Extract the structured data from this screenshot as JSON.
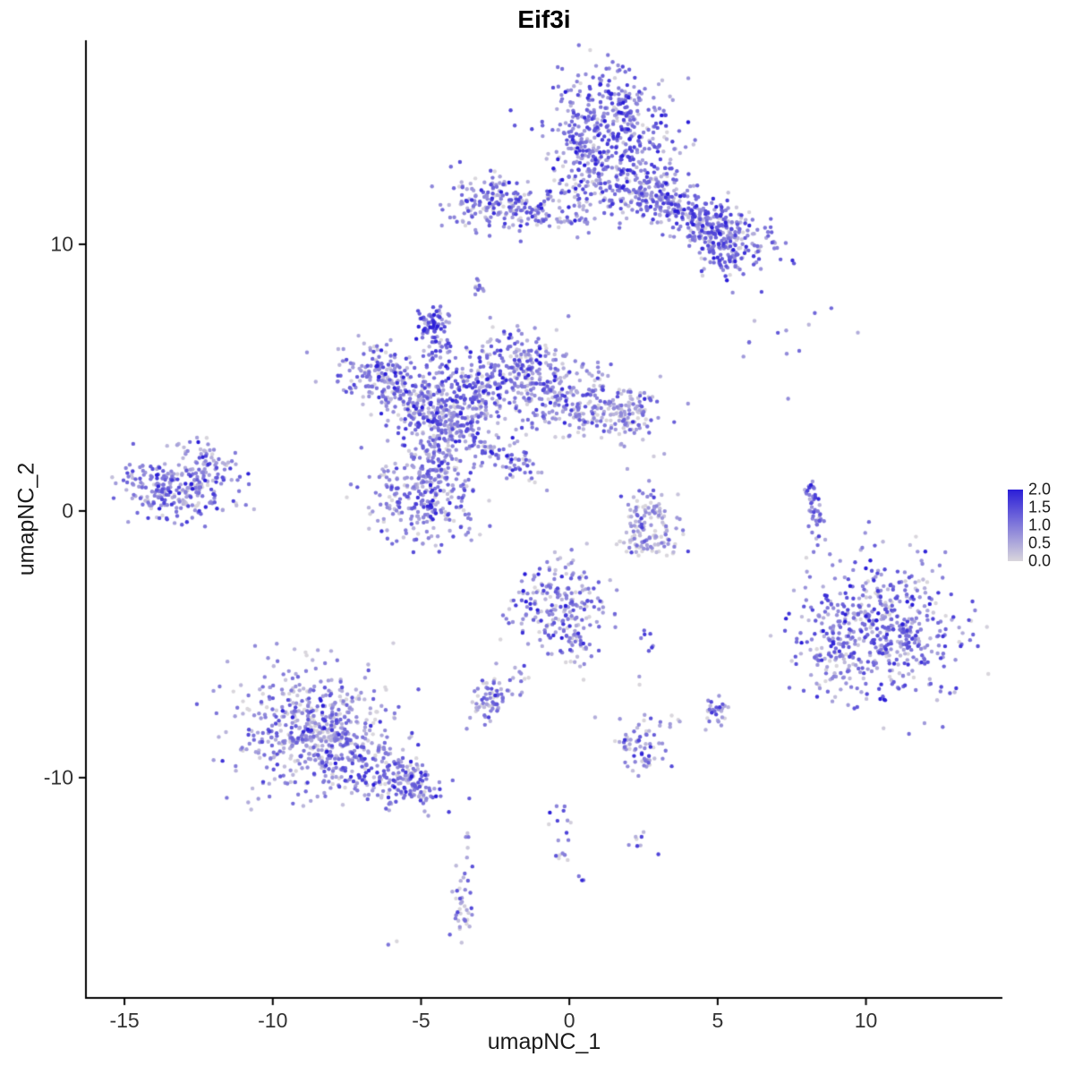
{
  "chart_data": {
    "type": "scatter",
    "title": "Eif3i",
    "xlabel": "umapNC_1",
    "ylabel": "umapNC_2",
    "xlim": [
      -16.3,
      14.6
    ],
    "ylim": [
      -18.26,
      17.65
    ],
    "x_ticks": [
      -15,
      -10,
      -5,
      0,
      5,
      10
    ],
    "y_ticks": [
      10,
      0,
      -10
    ],
    "grid": false,
    "point_radius": 2.2,
    "seed": 42,
    "legend": {
      "position": "right",
      "ticks": [
        "2.0",
        "1.5",
        "1.0",
        "0.5",
        "0.0"
      ],
      "low_color": "#D9D6DC",
      "high_color": "#2B1ED8",
      "value_range": [
        0.0,
        2.0
      ]
    },
    "axis_color": "#000000",
    "clusters": [
      {
        "x": 1.3,
        "y": 14.4,
        "sx": 1.0,
        "sy": 1.1,
        "rot": 0,
        "n": 420,
        "mu": 1.0
      },
      {
        "x": 1.6,
        "y": 12.5,
        "sx": 1.2,
        "sy": 0.7,
        "rot": 0,
        "n": 180,
        "mu": 0.9
      },
      {
        "x": 3.0,
        "y": 11.9,
        "sx": 0.5,
        "sy": 0.4,
        "rot": 0,
        "n": 60,
        "mu": 0.9
      },
      {
        "x": 4.3,
        "y": 11.0,
        "sx": 1.3,
        "sy": 0.45,
        "rot": -28,
        "n": 260,
        "mu": 1.0
      },
      {
        "x": 5.3,
        "y": 9.9,
        "sx": 0.55,
        "sy": 0.6,
        "rot": 0,
        "n": 150,
        "mu": 1.0
      },
      {
        "x": -2.6,
        "y": 11.6,
        "sx": 0.8,
        "sy": 0.5,
        "rot": 0,
        "n": 150,
        "mu": 0.9
      },
      {
        "x": -1.1,
        "y": 11.2,
        "sx": 0.9,
        "sy": 0.3,
        "rot": -10,
        "n": 70,
        "mu": 0.8
      },
      {
        "x": 0.6,
        "y": 11.4,
        "sx": 1.0,
        "sy": 0.35,
        "rot": 0,
        "n": 40,
        "mu": 0.7
      },
      {
        "x": -3.1,
        "y": 8.4,
        "sx": 0.15,
        "sy": 0.2,
        "rot": 0,
        "n": 10,
        "mu": 0.8
      },
      {
        "x": -4.6,
        "y": 7.1,
        "sx": 0.28,
        "sy": 0.3,
        "rot": 0,
        "n": 60,
        "mu": 1.1
      },
      {
        "x": -4.4,
        "y": 6.1,
        "sx": 0.3,
        "sy": 0.45,
        "rot": 0,
        "n": 35,
        "mu": 0.8
      },
      {
        "x": -6.4,
        "y": 5.2,
        "sx": 0.8,
        "sy": 0.55,
        "rot": -20,
        "n": 140,
        "mu": 0.9
      },
      {
        "x": -5.4,
        "y": 4.2,
        "sx": 0.8,
        "sy": 0.55,
        "rot": -20,
        "n": 140,
        "mu": 0.8
      },
      {
        "x": -4.3,
        "y": 3.5,
        "sx": 0.7,
        "sy": 0.8,
        "rot": 0,
        "n": 190,
        "mu": 0.9
      },
      {
        "x": -3.2,
        "y": 4.3,
        "sx": 0.7,
        "sy": 0.7,
        "rot": 0,
        "n": 140,
        "mu": 0.85
      },
      {
        "x": -1.9,
        "y": 5.3,
        "sx": 0.8,
        "sy": 0.7,
        "rot": 0,
        "n": 170,
        "mu": 0.9
      },
      {
        "x": -0.6,
        "y": 4.6,
        "sx": 0.8,
        "sy": 0.8,
        "rot": 0,
        "n": 170,
        "mu": 0.8
      },
      {
        "x": 0.9,
        "y": 3.9,
        "sx": 0.9,
        "sy": 0.6,
        "rot": 0,
        "n": 140,
        "mu": 0.7
      },
      {
        "x": 2.0,
        "y": 3.6,
        "sx": 0.5,
        "sy": 0.5,
        "rot": 0,
        "n": 70,
        "mu": 0.6
      },
      {
        "x": -2.4,
        "y": 2.2,
        "sx": 1.0,
        "sy": 0.25,
        "rot": -35,
        "n": 90,
        "mu": 0.85
      },
      {
        "x": -4.5,
        "y": 1.9,
        "sx": 0.5,
        "sy": 0.5,
        "rot": 0,
        "n": 80,
        "mu": 0.8
      },
      {
        "x": -4.9,
        "y": 0.5,
        "sx": 0.9,
        "sy": 0.8,
        "rot": 0,
        "n": 260,
        "mu": 0.8
      },
      {
        "x": -13.3,
        "y": 0.9,
        "sx": 1.0,
        "sy": 0.65,
        "rot": 0,
        "n": 270,
        "mu": 0.9
      },
      {
        "x": -11.9,
        "y": 1.8,
        "sx": 0.6,
        "sy": 0.25,
        "rot": -40,
        "n": 40,
        "mu": 0.85
      },
      {
        "x": 2.7,
        "y": -0.2,
        "sx": 0.5,
        "sy": 0.55,
        "rot": 0,
        "n": 80,
        "mu": 0.6
      },
      {
        "x": 2.7,
        "y": -1.2,
        "sx": 0.55,
        "sy": 0.25,
        "rot": 0,
        "n": 60,
        "mu": 0.3
      },
      {
        "x": 8.25,
        "y": 0.0,
        "sx": 0.12,
        "sy": 0.65,
        "rot": 8,
        "n": 45,
        "mu": 0.9
      },
      {
        "x": 8.0,
        "y": 6.6,
        "sx": 1.2,
        "sy": 0.7,
        "rot": 0,
        "n": 13,
        "mu": 0.7
      },
      {
        "x": 10.6,
        "y": -4.4,
        "sx": 1.3,
        "sy": 1.25,
        "rot": 0,
        "n": 520,
        "mu": 0.9
      },
      {
        "x": 8.8,
        "y": -5.6,
        "sx": 0.5,
        "sy": 0.7,
        "rot": 0,
        "n": 70,
        "mu": 0.8
      },
      {
        "x": -0.4,
        "y": -3.5,
        "sx": 0.8,
        "sy": 0.8,
        "rot": 0,
        "n": 200,
        "mu": 0.8
      },
      {
        "x": 0.2,
        "y": -5.0,
        "sx": 0.4,
        "sy": 0.5,
        "rot": 0,
        "n": 45,
        "mu": 0.7
      },
      {
        "x": -2.7,
        "y": -7.1,
        "sx": 0.4,
        "sy": 0.4,
        "rot": 0,
        "n": 65,
        "mu": 0.7
      },
      {
        "x": -1.7,
        "y": -6.3,
        "sx": 0.3,
        "sy": 0.4,
        "rot": 0,
        "n": 14,
        "mu": 0.6
      },
      {
        "x": 2.6,
        "y": -5.0,
        "sx": 0.15,
        "sy": 0.25,
        "rot": 0,
        "n": 7,
        "mu": 0.9
      },
      {
        "x": 5.0,
        "y": -7.5,
        "sx": 0.3,
        "sy": 0.3,
        "rot": 0,
        "n": 28,
        "mu": 0.75
      },
      {
        "x": 3.4,
        "y": -7.9,
        "sx": 0.2,
        "sy": 0.2,
        "rot": 0,
        "n": 6,
        "mu": 0.6
      },
      {
        "x": -8.6,
        "y": -8.2,
        "sx": 1.3,
        "sy": 1.15,
        "rot": 0,
        "n": 600,
        "mu": 0.7
      },
      {
        "x": -6.4,
        "y": -9.8,
        "sx": 1.1,
        "sy": 0.5,
        "rot": -22,
        "n": 170,
        "mu": 0.8
      },
      {
        "x": -5.3,
        "y": -10.3,
        "sx": 0.4,
        "sy": 0.4,
        "rot": 0,
        "n": 60,
        "mu": 0.9
      },
      {
        "x": 2.4,
        "y": -8.9,
        "sx": 0.4,
        "sy": 0.55,
        "rot": 0,
        "n": 65,
        "mu": 0.8
      },
      {
        "x": -0.4,
        "y": -11.6,
        "sx": 0.2,
        "sy": 0.4,
        "rot": 0,
        "n": 10,
        "mu": 0.8
      },
      {
        "x": -0.2,
        "y": -12.8,
        "sx": 0.15,
        "sy": 0.3,
        "rot": 0,
        "n": 7,
        "mu": 0.8
      },
      {
        "x": 0.5,
        "y": -13.9,
        "sx": 0.1,
        "sy": 0.1,
        "rot": 0,
        "n": 3,
        "mu": 0.7
      },
      {
        "x": 2.4,
        "y": -12.4,
        "sx": 0.25,
        "sy": 0.3,
        "rot": 0,
        "n": 8,
        "mu": 0.9
      },
      {
        "x": -3.3,
        "y": -12.3,
        "sx": 0.2,
        "sy": 0.15,
        "rot": 0,
        "n": 4,
        "mu": 0.3
      },
      {
        "x": -3.6,
        "y": -14.8,
        "sx": 0.18,
        "sy": 0.7,
        "rot": 0,
        "n": 38,
        "mu": 0.6
      },
      {
        "x": -6.1,
        "y": -16.2,
        "sx": 0.1,
        "sy": 0.1,
        "rot": 0,
        "n": 2,
        "mu": 0.6
      },
      {
        "x": 2.3,
        "y": -6.4,
        "sx": 0.1,
        "sy": 0.1,
        "rot": 0,
        "n": 2,
        "mu": 1.0
      }
    ]
  }
}
